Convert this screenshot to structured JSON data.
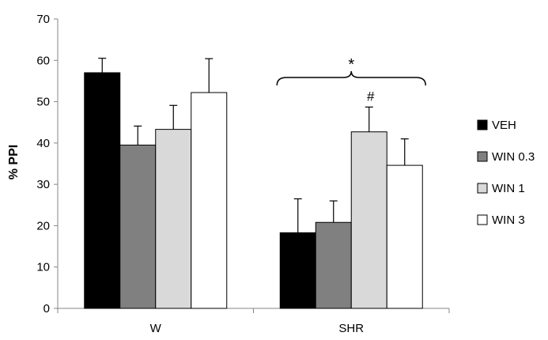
{
  "chart_data": {
    "type": "bar",
    "title": "",
    "xlabel": "",
    "ylabel": "% PPI",
    "ylim": [
      0,
      70
    ],
    "yticks": [
      "0",
      "10",
      "20",
      "30",
      "40",
      "50",
      "60",
      "70"
    ],
    "categories": [
      "W",
      "SHR"
    ],
    "series": [
      {
        "name": "VEH",
        "color": "#000000",
        "values": [
          57,
          18.3
        ],
        "errors": [
          3.5,
          8.2
        ]
      },
      {
        "name": "WIN 0.3",
        "color": "#808080",
        "values": [
          39.5,
          20.8
        ],
        "errors": [
          4.6,
          5.2
        ]
      },
      {
        "name": "WIN 1",
        "color": "#d9d9d9",
        "values": [
          43.3,
          42.7
        ],
        "errors": [
          5.8,
          6.0
        ]
      },
      {
        "name": "WIN 3",
        "color": "#ffffff",
        "values": [
          52.2,
          34.6
        ],
        "errors": [
          8.2,
          6.4
        ]
      }
    ],
    "annotations": [
      {
        "text": "*",
        "target": "SHR group bracket"
      },
      {
        "text": "#",
        "target": "SHR WIN 1"
      }
    ],
    "legend_position": "right"
  }
}
